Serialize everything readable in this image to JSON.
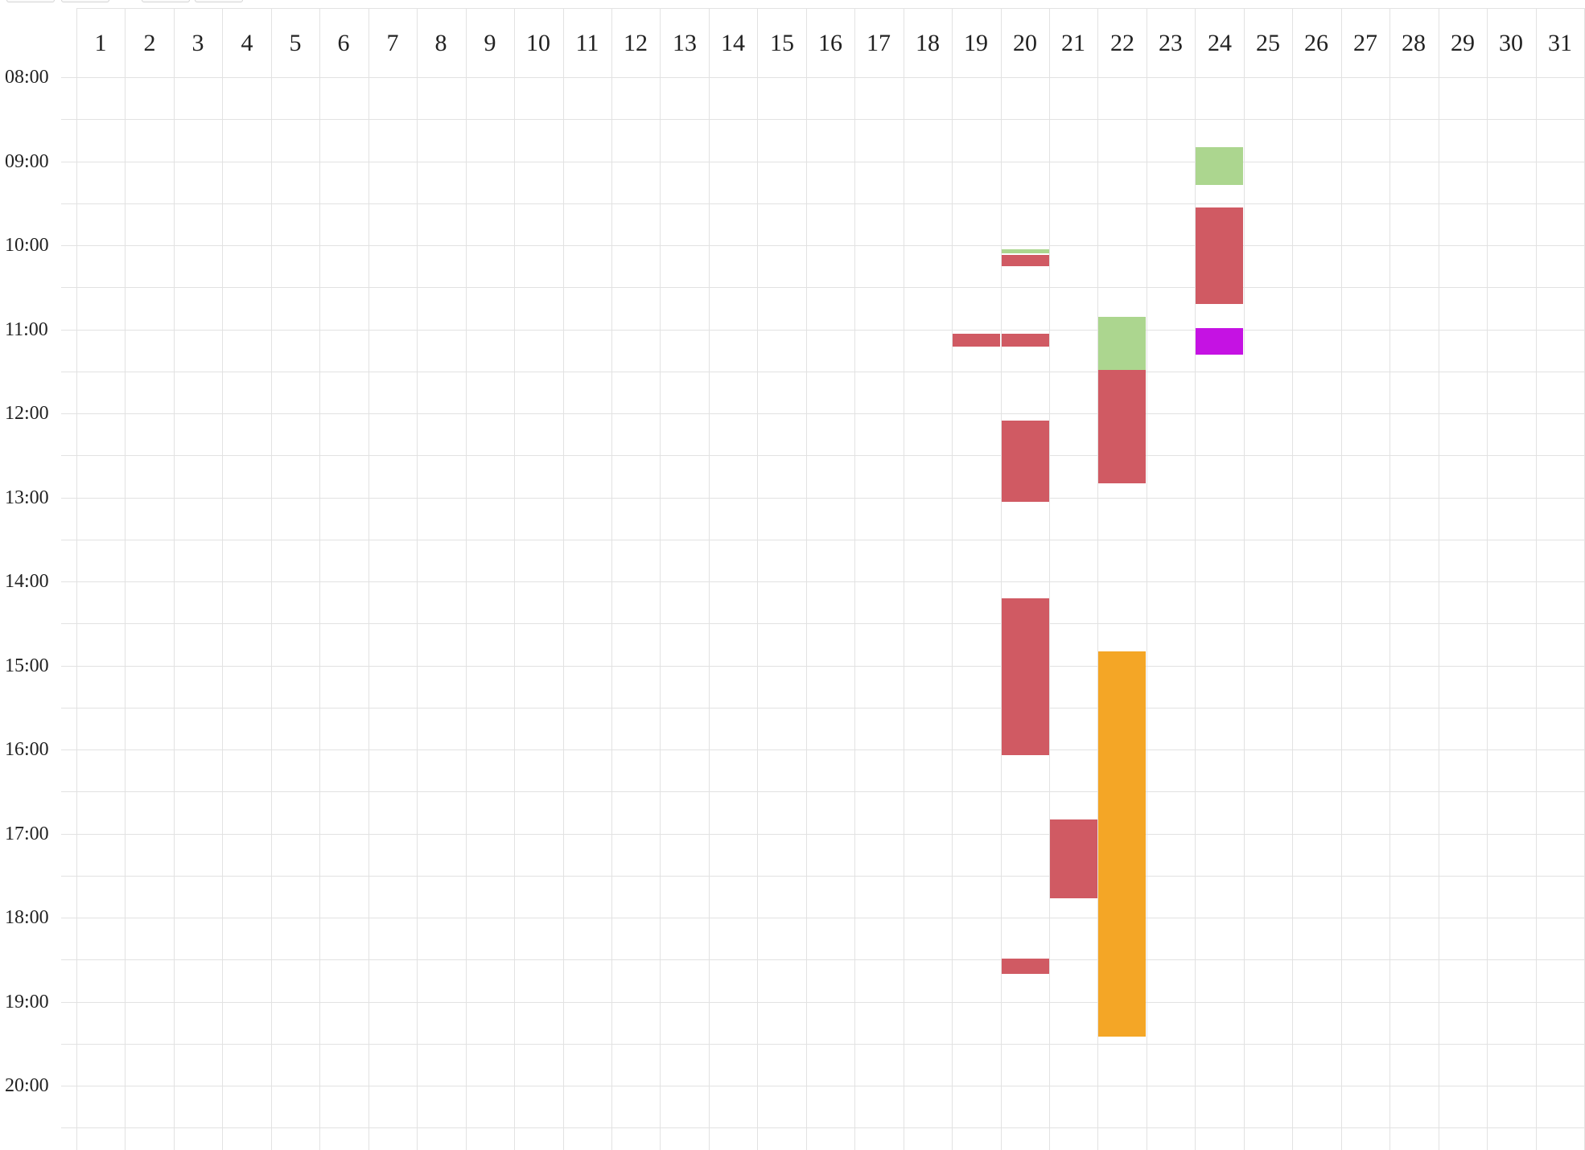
{
  "calendar": {
    "days": [
      "1",
      "2",
      "3",
      "4",
      "5",
      "6",
      "7",
      "8",
      "9",
      "10",
      "11",
      "12",
      "13",
      "14",
      "15",
      "16",
      "17",
      "18",
      "19",
      "20",
      "21",
      "22",
      "23",
      "24",
      "25",
      "26",
      "27",
      "28",
      "29",
      "30",
      "31"
    ],
    "times": [
      "08:00",
      "09:00",
      "10:00",
      "11:00",
      "12:00",
      "13:00",
      "14:00",
      "15:00",
      "16:00",
      "17:00",
      "18:00",
      "19:00",
      "20:00"
    ],
    "colors": {
      "red": "#d05a63",
      "green": "#acd68f",
      "orange": "#f4a626",
      "purple": "#c512e3",
      "grid": "#e2e2e2"
    },
    "events": [
      {
        "day": 24,
        "start": "08:50",
        "end": "09:17",
        "color": "green"
      },
      {
        "day": 24,
        "start": "09:33",
        "end": "10:42",
        "color": "red"
      },
      {
        "day": 24,
        "start": "10:59",
        "end": "11:18",
        "color": "purple"
      },
      {
        "day": 20,
        "start": "10:03",
        "end": "10:06",
        "color": "green"
      },
      {
        "day": 20,
        "start": "10:07",
        "end": "10:15",
        "color": "red"
      },
      {
        "day": 19,
        "start": "11:03",
        "end": "11:12",
        "color": "red"
      },
      {
        "day": 20,
        "start": "11:03",
        "end": "11:12",
        "color": "red"
      },
      {
        "day": 22,
        "start": "10:51",
        "end": "11:29",
        "color": "green"
      },
      {
        "day": 22,
        "start": "11:29",
        "end": "12:50",
        "color": "red"
      },
      {
        "day": 20,
        "start": "12:05",
        "end": "13:03",
        "color": "red"
      },
      {
        "day": 20,
        "start": "14:12",
        "end": "16:04",
        "color": "red"
      },
      {
        "day": 22,
        "start": "14:50",
        "end": "19:25",
        "color": "orange"
      },
      {
        "day": 21,
        "start": "16:50",
        "end": "17:46",
        "color": "red"
      },
      {
        "day": 20,
        "start": "18:29",
        "end": "18:40",
        "color": "red"
      }
    ]
  }
}
